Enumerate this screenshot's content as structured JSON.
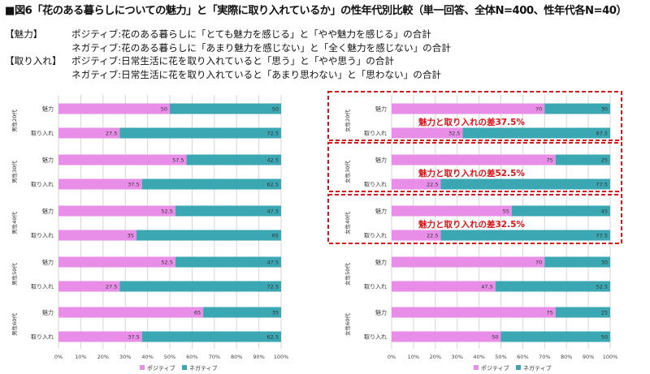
{
  "title": "■図6「花のある暮らしについての魅力」と「実際に取り入れているか」の性年代別比較（単一回答、全体N=400、性年代各N=40）",
  "definitions": [
    {
      "tag": "【魅力】",
      "text": "ポジティブ:花のある暮らしに「とても魅力を感じる」と「やや魅力を感じる」の合計"
    },
    {
      "tag": "",
      "text": "ネガティブ:花のある暮らしに「あまり魅力を感じない」と「全く魅力を感じない」の合計"
    },
    {
      "tag": "【取り入れ】",
      "text": "ポジティブ:日常生活に花を取り入れていると「思う」と「やや思う」の合計"
    },
    {
      "tag": "",
      "text": "ネガティブ:日常生活に花を取り入れていると「あまり思わない」と「思わない」の合計"
    }
  ],
  "colors": {
    "positive": "#e88ee8",
    "negative": "#3aa7b3",
    "highlight": "#d9141a",
    "grid": "#d6d6d6"
  },
  "chart_data": [
    {
      "type": "bar",
      "orientation": "horizontal",
      "stacked": true,
      "xlim": [
        0,
        100
      ],
      "x_ticks": [
        "0%",
        "10%",
        "20%",
        "30%",
        "40%",
        "50%",
        "60%",
        "70%",
        "80%",
        "90%",
        "100%"
      ],
      "legend": [
        "ポジティブ",
        "ネガティブ"
      ],
      "groups": [
        {
          "label": "男性20代",
          "rows": [
            {
              "label": "魅力",
              "positive": 50,
              "negative": 50
            },
            {
              "label": "取り入れ",
              "positive": 27.5,
              "negative": 72.5
            }
          ]
        },
        {
          "label": "男性30代",
          "rows": [
            {
              "label": "魅力",
              "positive": 57.5,
              "negative": 42.5
            },
            {
              "label": "取り入れ",
              "positive": 37.5,
              "negative": 62.5
            }
          ]
        },
        {
          "label": "男性40代",
          "rows": [
            {
              "label": "魅力",
              "positive": 52.5,
              "negative": 47.5
            },
            {
              "label": "取り入れ",
              "positive": 35,
              "negative": 65
            }
          ]
        },
        {
          "label": "男性50代",
          "rows": [
            {
              "label": "魅力",
              "positive": 52.5,
              "negative": 47.5
            },
            {
              "label": "取り入れ",
              "positive": 27.5,
              "negative": 72.5
            }
          ]
        },
        {
          "label": "男性60代",
          "rows": [
            {
              "label": "魅力",
              "positive": 65,
              "negative": 35
            },
            {
              "label": "取り入れ",
              "positive": 37.5,
              "negative": 62.5
            }
          ]
        }
      ]
    },
    {
      "type": "bar",
      "orientation": "horizontal",
      "stacked": true,
      "xlim": [
        0,
        100
      ],
      "x_ticks": [
        "0%",
        "10%",
        "20%",
        "30%",
        "40%",
        "50%",
        "60%",
        "70%",
        "80%",
        "90%",
        "100%"
      ],
      "legend": [
        "ポジティブ",
        "ネガティブ"
      ],
      "groups": [
        {
          "label": "女性20代",
          "highlight": "魅力と取り入れの差37.5%",
          "rows": [
            {
              "label": "魅力",
              "positive": 70,
              "negative": 30
            },
            {
              "label": "取り入れ",
              "positive": 32.5,
              "negative": 67.5
            }
          ]
        },
        {
          "label": "女性30代",
          "highlight": "魅力と取り入れの差52.5%",
          "rows": [
            {
              "label": "魅力",
              "positive": 75,
              "negative": 25
            },
            {
              "label": "取り入れ",
              "positive": 22.5,
              "negative": 77.5
            }
          ]
        },
        {
          "label": "女性40代",
          "highlight": "魅力と取り入れの差32.5%",
          "rows": [
            {
              "label": "魅力",
              "positive": 55,
              "negative": 45
            },
            {
              "label": "取り入れ",
              "positive": 22.5,
              "negative": 77.5
            }
          ]
        },
        {
          "label": "女性50代",
          "rows": [
            {
              "label": "魅力",
              "positive": 70,
              "negative": 30
            },
            {
              "label": "取り入れ",
              "positive": 47.5,
              "negative": 52.5
            }
          ]
        },
        {
          "label": "女性60代",
          "rows": [
            {
              "label": "魅力",
              "positive": 75,
              "negative": 25
            },
            {
              "label": "取り入れ",
              "positive": 50,
              "negative": 50
            }
          ]
        }
      ]
    }
  ]
}
